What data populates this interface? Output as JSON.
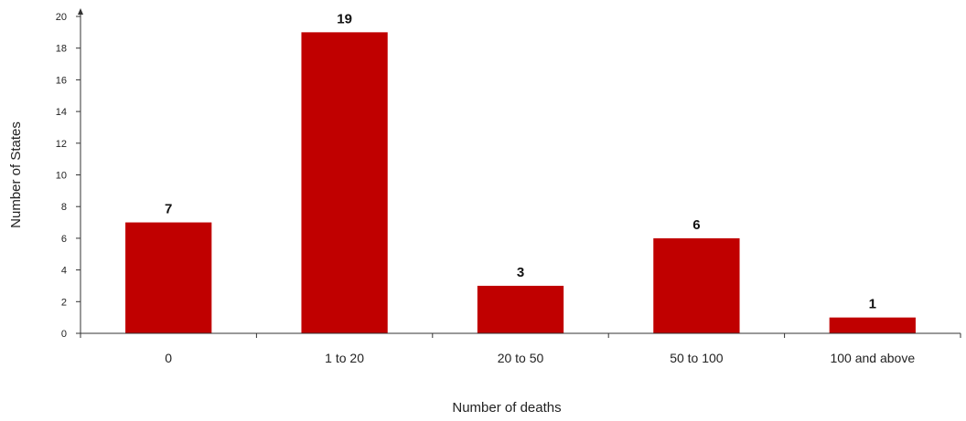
{
  "chart_data": {
    "type": "bar",
    "title": "",
    "xlabel": "Number of deaths",
    "ylabel": "Number of States",
    "categories": [
      "0",
      "1 to 20",
      "20 to 50",
      "50 to 100",
      "100 and above"
    ],
    "values": [
      7,
      19,
      3,
      6,
      1
    ],
    "data_labels": [
      "7",
      "19",
      "3",
      "6",
      "1"
    ],
    "ylim": [
      0,
      20
    ],
    "yticks": [
      0,
      2,
      4,
      6,
      8,
      10,
      12,
      14,
      16,
      18,
      20
    ],
    "grid": false,
    "legend": "none",
    "bar_color": "#C00000"
  }
}
